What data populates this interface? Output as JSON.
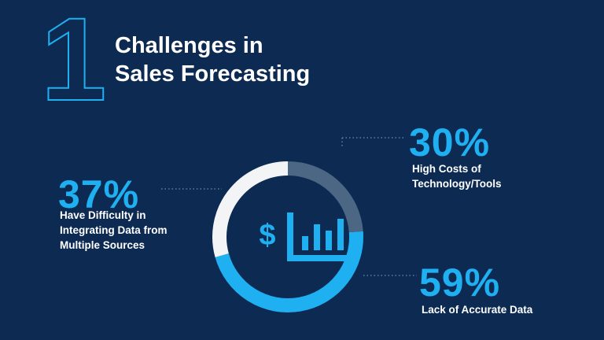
{
  "section_number": "1",
  "chart_data": {
    "type": "donut",
    "title": [
      "Challenges in",
      "Sales Forecasting"
    ],
    "categories": [
      "High Costs of Technology/Tools",
      "Lack of Accurate Data",
      "Have Difficulty in Integrating Data from Multiple Sources"
    ],
    "values": [
      30,
      59,
      37
    ],
    "value_labels": [
      "30%",
      "59%",
      "37%"
    ],
    "colors": [
      "#4b6783",
      "#1fb0f2",
      "#f3f4f6"
    ]
  }
}
